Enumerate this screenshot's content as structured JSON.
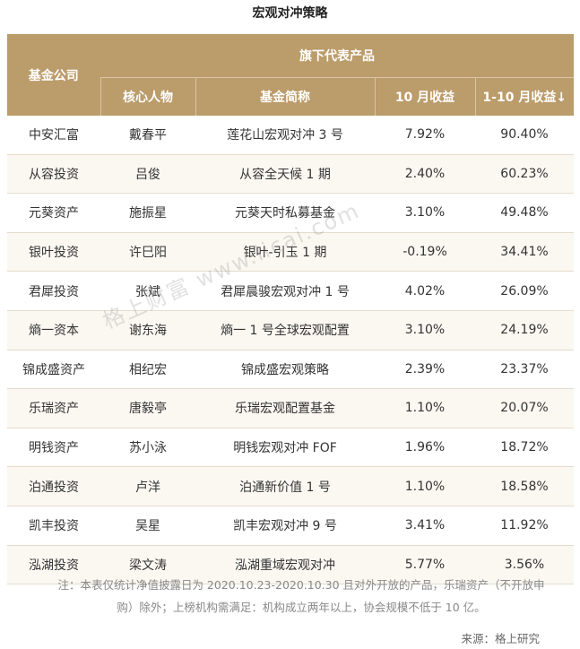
{
  "header": {
    "title": "宏观对冲策略"
  },
  "table": {
    "group_header": [
      "基金公司",
      "旗下代表产品"
    ],
    "columns": [
      "核心人物",
      "基金简称",
      "10 月收益",
      "1-10 月收益↓"
    ],
    "rows": [
      [
        "中安汇富",
        "戴春平",
        "莲花山宏观对冲 3 号",
        "7.92%",
        "90.40%"
      ],
      [
        "从容投资",
        "吕俊",
        "从容全天候 1 期",
        "2.40%",
        "60.23%"
      ],
      [
        "元葵资产",
        "施振星",
        "元葵天时私募基金",
        "3.10%",
        "49.48%"
      ],
      [
        "银叶投资",
        "许巳阳",
        "银叶-引玉 1 期",
        "-0.19%",
        "34.41%"
      ],
      [
        "君犀投资",
        "张斌",
        "君犀晨骏宏观对冲 1 号",
        "4.02%",
        "26.09%"
      ],
      [
        "熵一资本",
        "谢东海",
        "熵一 1 号全球宏观配置",
        "3.10%",
        "24.19%"
      ],
      [
        "锦成盛资产",
        "相纪宏",
        "锦成盛宏观策略",
        "2.39%",
        "23.37%"
      ],
      [
        "乐瑞资产",
        "唐毅亭",
        "乐瑞宏观配置基金",
        "1.10%",
        "20.07%"
      ],
      [
        "明钱资产",
        "苏小泳",
        "明钱宏观对冲 FOF",
        "1.96%",
        "18.72%"
      ],
      [
        "泊通投资",
        "卢洋",
        "泊通新价值 1 号",
        "1.10%",
        "18.58%"
      ],
      [
        "凯丰投资",
        "吴星",
        "凯丰宏观对冲 9 号",
        "3.41%",
        "11.92%"
      ],
      [
        "泓湖投资",
        "梁文涛",
        "泓湖重域宏观对冲",
        "5.77%",
        "3.56%"
      ]
    ]
  },
  "note": "注：本表仅统计净值披露日为 2020.10.23-2020.10.30 且对外开放的产品，乐瑞资产（不开放申购）除外；上榜机构需满足：机构成立两年以上，协会规模不低于 10 亿。",
  "source": "来源：格上研究",
  "watermark": "格上财富 www.licai.com"
}
